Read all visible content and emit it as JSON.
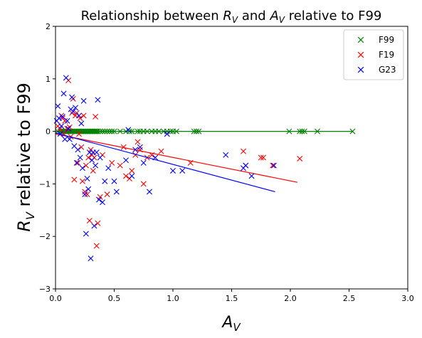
{
  "chart_data": {
    "type": "scatter",
    "title": "Relationship between R_V and A_V relative to F99",
    "title_parts": {
      "prefix": "Relationship between ",
      "r": "R",
      "r_sub": "V",
      "mid": " and ",
      "a": "A",
      "a_sub": "V",
      "suffix": " relative to F99"
    },
    "xlabel": "A_V",
    "xlabel_parts": {
      "main": "A",
      "sub": "V"
    },
    "ylabel": "R_V relative to F99",
    "ylabel_parts": {
      "main": "R",
      "sub": "V",
      "rest": " relative to F99"
    },
    "xlim": [
      0,
      3
    ],
    "ylim": [
      -3,
      2
    ],
    "xticks": [
      0.0,
      0.5,
      1.0,
      1.5,
      2.0,
      2.5,
      3.0
    ],
    "xtick_labels": [
      "0.0",
      "0.5",
      "1.0",
      "1.5",
      "2.0",
      "2.5",
      "3.0"
    ],
    "yticks": [
      -3,
      -2,
      -1,
      0,
      1,
      2
    ],
    "ytick_labels": [
      "−3",
      "−2",
      "−1",
      "0",
      "1",
      "2"
    ],
    "grid": false,
    "legend_placement": "top-right",
    "series": [
      {
        "name": "F99",
        "color": "#008000",
        "marker": "x",
        "points": [
          [
            0.02,
            0.0
          ],
          [
            0.04,
            0.0
          ],
          [
            0.05,
            0.0
          ],
          [
            0.06,
            0.0
          ],
          [
            0.07,
            0.0
          ],
          [
            0.08,
            0.0
          ],
          [
            0.09,
            0.0
          ],
          [
            0.1,
            0.0
          ],
          [
            0.11,
            0.0
          ],
          [
            0.12,
            0.0
          ],
          [
            0.13,
            0.0
          ],
          [
            0.14,
            0.0
          ],
          [
            0.15,
            0.0
          ],
          [
            0.16,
            0.0
          ],
          [
            0.17,
            0.0
          ],
          [
            0.18,
            0.0
          ],
          [
            0.19,
            0.0
          ],
          [
            0.2,
            0.0
          ],
          [
            0.21,
            0.0
          ],
          [
            0.22,
            0.0
          ],
          [
            0.23,
            0.0
          ],
          [
            0.24,
            0.0
          ],
          [
            0.25,
            0.0
          ],
          [
            0.26,
            0.0
          ],
          [
            0.27,
            0.0
          ],
          [
            0.28,
            0.0
          ],
          [
            0.29,
            0.0
          ],
          [
            0.3,
            0.0
          ],
          [
            0.31,
            0.0
          ],
          [
            0.32,
            0.0
          ],
          [
            0.33,
            0.0
          ],
          [
            0.34,
            0.0
          ],
          [
            0.35,
            0.0
          ],
          [
            0.36,
            0.0
          ],
          [
            0.38,
            0.0
          ],
          [
            0.4,
            0.0
          ],
          [
            0.42,
            0.0
          ],
          [
            0.44,
            0.0
          ],
          [
            0.46,
            0.0
          ],
          [
            0.48,
            0.0
          ],
          [
            0.5,
            0.0
          ],
          [
            0.55,
            0.0
          ],
          [
            0.6,
            0.0
          ],
          [
            0.63,
            0.0
          ],
          [
            0.65,
            0.0
          ],
          [
            0.7,
            0.0
          ],
          [
            0.72,
            0.0
          ],
          [
            0.75,
            0.0
          ],
          [
            0.78,
            0.0
          ],
          [
            0.82,
            0.0
          ],
          [
            0.85,
            0.0
          ],
          [
            0.88,
            0.0
          ],
          [
            0.92,
            0.0
          ],
          [
            0.95,
            0.0
          ],
          [
            0.98,
            0.0
          ],
          [
            1.0,
            0.0
          ],
          [
            1.03,
            0.0
          ],
          [
            1.18,
            0.0
          ],
          [
            1.2,
            0.0
          ],
          [
            1.22,
            0.0
          ],
          [
            1.99,
            0.0
          ],
          [
            2.08,
            0.0
          ],
          [
            2.1,
            0.0
          ],
          [
            2.12,
            0.0
          ],
          [
            2.23,
            0.0
          ],
          [
            2.53,
            0.0
          ]
        ],
        "trend": [
          [
            0.0,
            0.0
          ],
          [
            2.53,
            0.0
          ]
        ]
      },
      {
        "name": "F19",
        "color": "#ff0000",
        "marker": "x",
        "points": [
          [
            0.02,
            0.1
          ],
          [
            0.04,
            0.05
          ],
          [
            0.05,
            0.3
          ],
          [
            0.06,
            0.25
          ],
          [
            0.07,
            -0.05
          ],
          [
            0.08,
            0.2
          ],
          [
            0.1,
            0.05
          ],
          [
            0.11,
            0.97
          ],
          [
            0.12,
            0.08
          ],
          [
            0.13,
            -0.1
          ],
          [
            0.14,
            0.35
          ],
          [
            0.15,
            0.62
          ],
          [
            0.16,
            -0.92
          ],
          [
            0.17,
            0.3
          ],
          [
            0.18,
            0.35
          ],
          [
            0.19,
            -0.6
          ],
          [
            0.2,
            -0.05
          ],
          [
            0.21,
            0.25
          ],
          [
            0.22,
            -0.3
          ],
          [
            0.23,
            -0.95
          ],
          [
            0.24,
            0.3
          ],
          [
            0.25,
            -1.15
          ],
          [
            0.26,
            -0.65
          ],
          [
            0.27,
            -1.2
          ],
          [
            0.28,
            -0.5
          ],
          [
            0.29,
            -1.7
          ],
          [
            0.3,
            -0.35
          ],
          [
            0.31,
            -0.45
          ],
          [
            0.32,
            -0.75
          ],
          [
            0.33,
            -0.5
          ],
          [
            0.34,
            0.28
          ],
          [
            0.35,
            -2.18
          ],
          [
            0.36,
            -1.75
          ],
          [
            0.38,
            -1.25
          ],
          [
            0.4,
            -0.45
          ],
          [
            0.44,
            -1.2
          ],
          [
            0.48,
            -0.6
          ],
          [
            0.55,
            -0.65
          ],
          [
            0.58,
            -0.3
          ],
          [
            0.6,
            -0.85
          ],
          [
            0.63,
            -0.9
          ],
          [
            0.65,
            -0.75
          ],
          [
            0.68,
            -0.45
          ],
          [
            0.7,
            -0.2
          ],
          [
            0.72,
            -0.35
          ],
          [
            0.75,
            -1.0
          ],
          [
            0.78,
            -0.5
          ],
          [
            0.82,
            -0.45
          ],
          [
            0.9,
            -0.38
          ],
          [
            0.95,
            -0.05
          ],
          [
            1.15,
            -0.6
          ],
          [
            1.6,
            -0.38
          ],
          [
            1.62,
            -0.65
          ],
          [
            1.75,
            -0.5
          ],
          [
            1.77,
            -0.5
          ],
          [
            1.85,
            -0.65
          ],
          [
            2.08,
            -0.52
          ]
        ],
        "trend": [
          [
            0.0,
            -0.05
          ],
          [
            2.06,
            -0.97
          ]
        ]
      },
      {
        "name": "G23",
        "color": "#0000ff",
        "marker": "x",
        "points": [
          [
            0.01,
            0.2
          ],
          [
            0.02,
            0.48
          ],
          [
            0.03,
            0.25
          ],
          [
            0.04,
            -0.05
          ],
          [
            0.05,
            0.1
          ],
          [
            0.06,
            0.28
          ],
          [
            0.07,
            0.72
          ],
          [
            0.08,
            -0.15
          ],
          [
            0.09,
            1.02
          ],
          [
            0.1,
            0.2
          ],
          [
            0.11,
            0.05
          ],
          [
            0.12,
            -0.15
          ],
          [
            0.13,
            0.42
          ],
          [
            0.14,
            0.65
          ],
          [
            0.15,
            0.38
          ],
          [
            0.16,
            -0.28
          ],
          [
            0.17,
            0.45
          ],
          [
            0.18,
            -0.6
          ],
          [
            0.19,
            -0.35
          ],
          [
            0.2,
            0.3
          ],
          [
            0.21,
            -0.5
          ],
          [
            0.22,
            0.15
          ],
          [
            0.23,
            -0.7
          ],
          [
            0.24,
            0.58
          ],
          [
            0.25,
            -1.2
          ],
          [
            0.26,
            -1.95
          ],
          [
            0.27,
            -0.9
          ],
          [
            0.28,
            -1.1
          ],
          [
            0.29,
            -0.4
          ],
          [
            0.3,
            -2.42
          ],
          [
            0.31,
            -0.55
          ],
          [
            0.32,
            -0.4
          ],
          [
            0.33,
            -1.8
          ],
          [
            0.34,
            -0.65
          ],
          [
            0.35,
            -0.4
          ],
          [
            0.36,
            0.6
          ],
          [
            0.37,
            -1.3
          ],
          [
            0.38,
            -0.5
          ],
          [
            0.4,
            -1.35
          ],
          [
            0.42,
            -0.95
          ],
          [
            0.45,
            -0.7
          ],
          [
            0.5,
            -0.95
          ],
          [
            0.52,
            -1.15
          ],
          [
            0.6,
            -0.55
          ],
          [
            0.62,
            0.03
          ],
          [
            0.65,
            -0.85
          ],
          [
            0.68,
            -0.35
          ],
          [
            0.72,
            -0.3
          ],
          [
            0.75,
            -0.6
          ],
          [
            0.8,
            -1.15
          ],
          [
            0.85,
            -0.5
          ],
          [
            0.95,
            -0.05
          ],
          [
            1.0,
            -0.75
          ],
          [
            1.08,
            -0.75
          ],
          [
            1.45,
            -0.45
          ],
          [
            1.6,
            -0.7
          ],
          [
            1.62,
            -0.65
          ],
          [
            1.67,
            -0.85
          ],
          [
            1.86,
            -0.65
          ]
        ],
        "trend": [
          [
            0.0,
            -0.03
          ],
          [
            1.87,
            -1.15
          ]
        ]
      }
    ]
  }
}
